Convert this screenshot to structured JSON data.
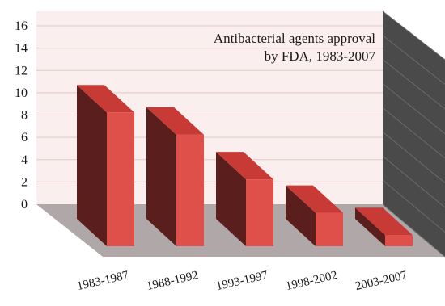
{
  "chart_data": {
    "type": "bar",
    "title_line1": "Antibacterial agents approval",
    "title_line2": "by FDA, 1983-2007",
    "categories": [
      "1983-1987",
      "1988-1992",
      "1993-1997",
      "1998-2002",
      "2003-2007"
    ],
    "values": [
      12,
      10,
      6,
      3,
      1
    ],
    "ylim": [
      0,
      16
    ],
    "yticks": [
      "0",
      "2",
      "4",
      "6",
      "8",
      "10",
      "12",
      "14",
      "16"
    ],
    "xlabel": "",
    "ylabel": "",
    "grid": true,
    "style": "3d-column",
    "colors": {
      "bar_front": "#e0504a",
      "bar_top": "#c83a36",
      "bar_side": "#5a1e1c",
      "wall_back": "#fbeeee",
      "wall_side": "#4a4a4a",
      "floor": "#b0a8a8",
      "grid": "#e2c8c8"
    }
  }
}
